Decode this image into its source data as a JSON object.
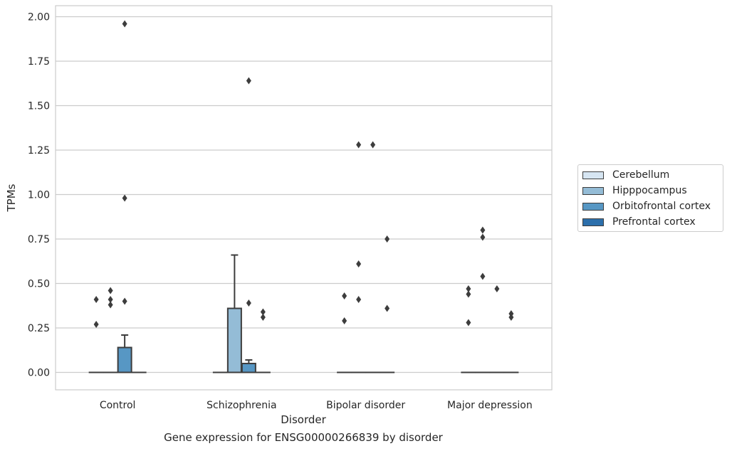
{
  "caption": "Gene expression for ENSG00000266839 by disorder",
  "chart_data": {
    "type": "box",
    "xlabel": "Disorder",
    "ylabel": "TPMs",
    "ylim": [
      -0.1,
      2.05
    ],
    "yticks": [
      0.0,
      0.25,
      0.5,
      0.75,
      1.0,
      1.25,
      1.5,
      1.75,
      2.0
    ],
    "ytick_labels": [
      "0.00",
      "0.25",
      "0.50",
      "0.75",
      "1.00",
      "1.25",
      "1.50",
      "1.75",
      "2.00"
    ],
    "grid": true,
    "legend_position": "right",
    "categories": [
      "Control",
      "Schizophrenia",
      "Bipolar disorder",
      "Major depression"
    ],
    "series": [
      {
        "name": "Cerebellum",
        "color": "#d6e5f2",
        "boxes": [
          {
            "q1": 0,
            "median": 0,
            "q3": 0,
            "whisker_low": 0,
            "whisker_high": 0,
            "outliers": [
              0.27,
              0.41
            ]
          },
          {
            "q1": 0,
            "median": 0,
            "q3": 0,
            "whisker_low": 0,
            "whisker_high": 0,
            "outliers": []
          },
          {
            "q1": 0,
            "median": 0,
            "q3": 0,
            "whisker_low": 0,
            "whisker_high": 0,
            "outliers": [
              0.29,
              0.43
            ]
          },
          {
            "q1": 0,
            "median": 0,
            "q3": 0,
            "whisker_low": 0,
            "whisker_high": 0,
            "outliers": [
              0.28,
              0.44,
              0.47
            ]
          }
        ]
      },
      {
        "name": "Hipppocampus",
        "color": "#94bcd6",
        "boxes": [
          {
            "q1": 0,
            "median": 0,
            "q3": 0,
            "whisker_low": 0,
            "whisker_high": 0,
            "outliers": [
              0.38,
              0.41,
              0.46
            ]
          },
          {
            "q1": 0,
            "median": 0,
            "q3": 0.36,
            "whisker_low": 0,
            "whisker_high": 0.66,
            "outliers": []
          },
          {
            "q1": 0,
            "median": 0,
            "q3": 0,
            "whisker_low": 0,
            "whisker_high": 0,
            "outliers": [
              0.41,
              0.61,
              1.28
            ]
          },
          {
            "q1": 0,
            "median": 0,
            "q3": 0,
            "whisker_low": 0,
            "whisker_high": 0,
            "outliers": [
              0.54,
              0.76,
              0.8
            ]
          }
        ]
      },
      {
        "name": "Orbitofrontal cortex",
        "color": "#5797c4",
        "boxes": [
          {
            "q1": 0,
            "median": 0,
            "q3": 0.14,
            "whisker_low": 0,
            "whisker_high": 0.21,
            "outliers": [
              0.4,
              0.98,
              1.96
            ]
          },
          {
            "q1": 0,
            "median": 0,
            "q3": 0.05,
            "whisker_low": 0,
            "whisker_high": 0.07,
            "outliers": [
              0.39,
              1.64
            ]
          },
          {
            "q1": 0,
            "median": 0,
            "q3": 0,
            "whisker_low": 0,
            "whisker_high": 0,
            "outliers": [
              1.28
            ]
          },
          {
            "q1": 0,
            "median": 0,
            "q3": 0,
            "whisker_low": 0,
            "whisker_high": 0,
            "outliers": [
              0.47
            ]
          }
        ]
      },
      {
        "name": "Prefrontal cortex",
        "color": "#2c6fab",
        "boxes": [
          {
            "q1": 0,
            "median": 0,
            "q3": 0,
            "whisker_low": 0,
            "whisker_high": 0,
            "outliers": []
          },
          {
            "q1": 0,
            "median": 0,
            "q3": 0,
            "whisker_low": 0,
            "whisker_high": 0,
            "outliers": [
              0.31,
              0.34
            ]
          },
          {
            "q1": 0,
            "median": 0,
            "q3": 0,
            "whisker_low": 0,
            "whisker_high": 0,
            "outliers": [
              0.36,
              0.75
            ]
          },
          {
            "q1": 0,
            "median": 0,
            "q3": 0,
            "whisker_low": 0,
            "whisker_high": 0,
            "outliers": [
              0.31,
              0.33
            ]
          }
        ]
      }
    ]
  }
}
